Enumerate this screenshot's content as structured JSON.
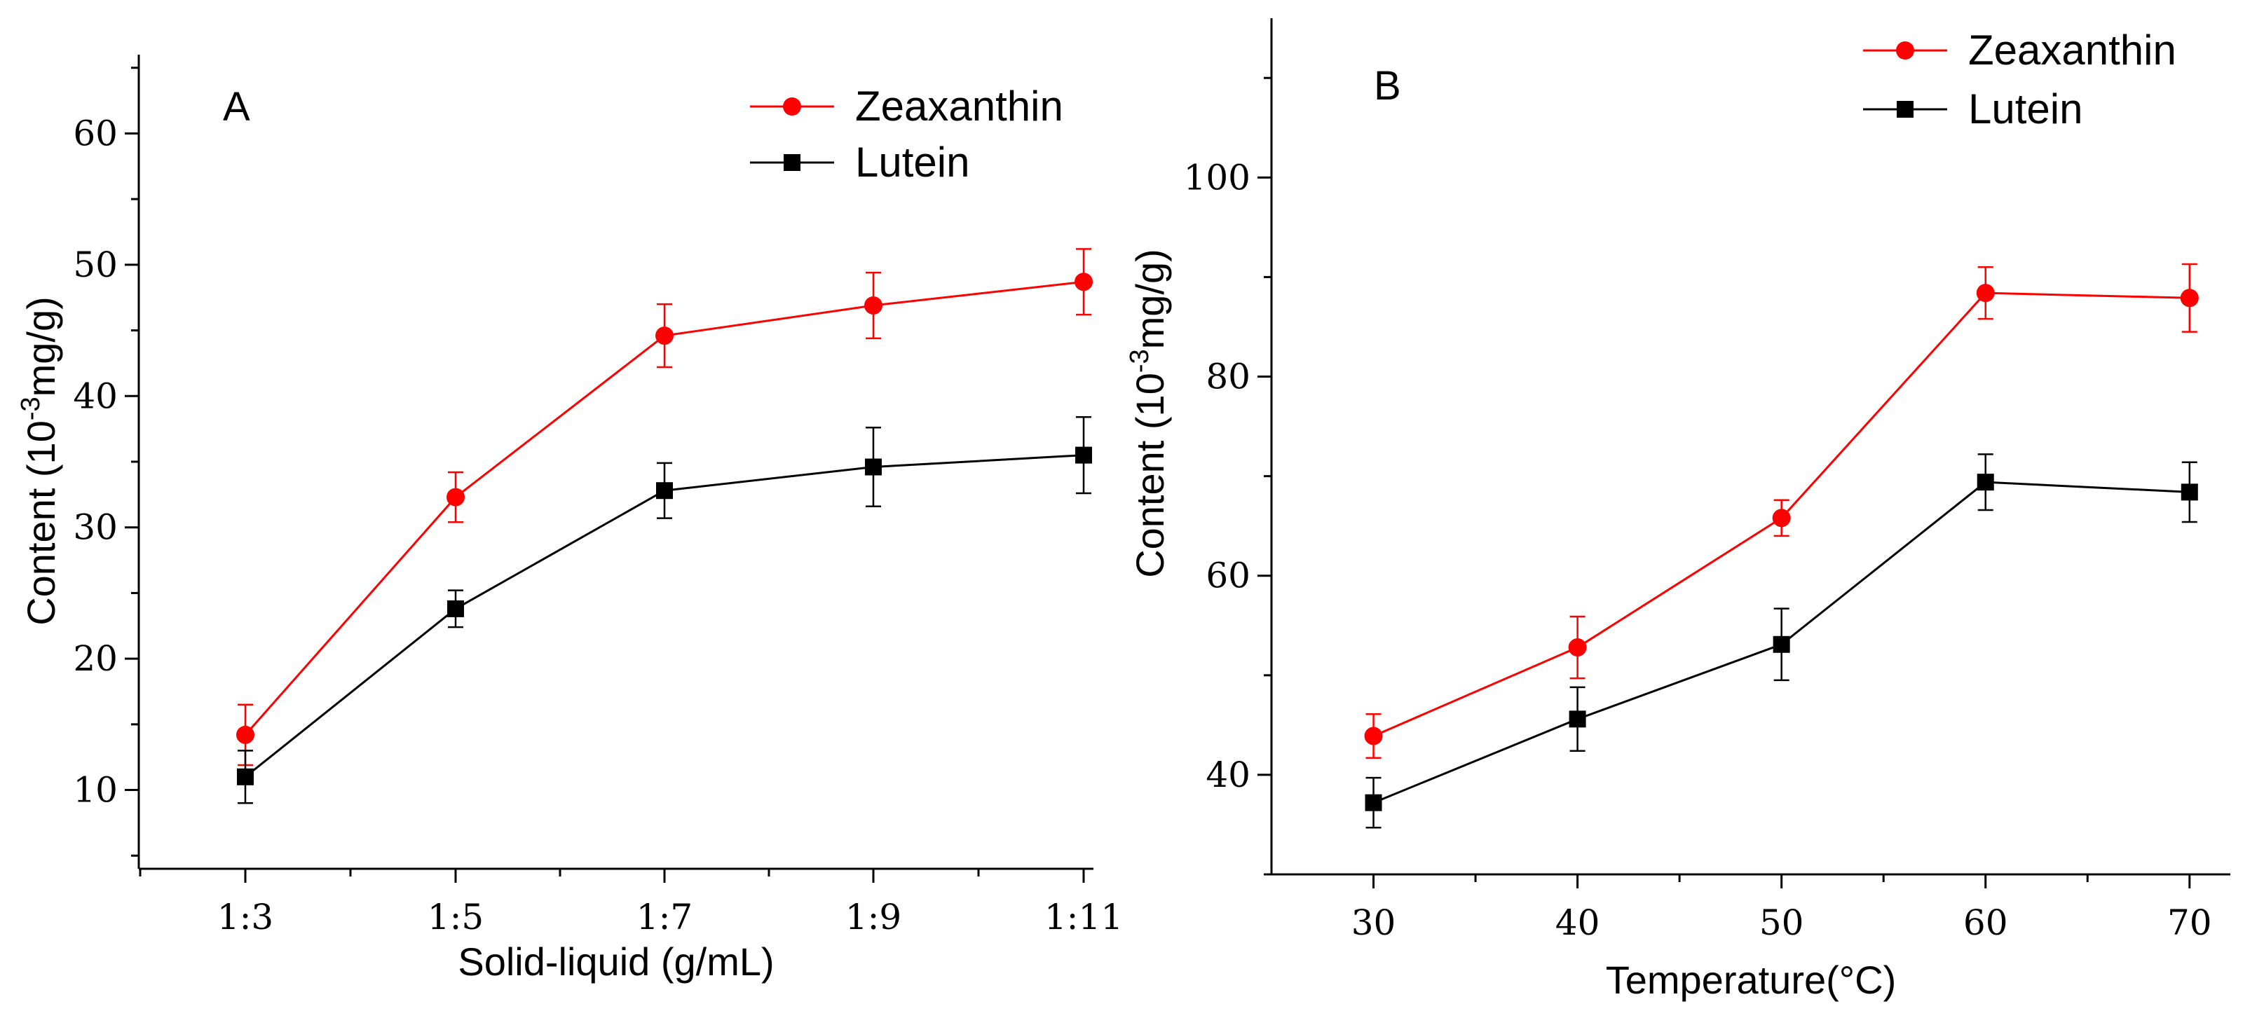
{
  "chart_data": [
    {
      "type": "line",
      "panel_label": "A",
      "categories": [
        "1:3",
        "1:5",
        "1:7",
        "1:9",
        "1:11"
      ],
      "xlabel": "Solid-liquid (g/mL)",
      "ylabel_prefix": "Content (10",
      "ylabel_sup": "-3",
      "ylabel_suffix": "mg/g)",
      "ylim": [
        4,
        66
      ],
      "yticks": [
        10,
        20,
        30,
        40,
        50,
        60
      ],
      "grid": false,
      "legend_position": "top-right",
      "series": [
        {
          "name": "Zeaxanthin",
          "color": "#ff0000",
          "marker": "circle",
          "values": [
            14.2,
            32.3,
            44.6,
            46.9,
            48.7
          ],
          "errors": [
            2.3,
            1.9,
            2.4,
            2.5,
            2.5
          ]
        },
        {
          "name": "Lutein",
          "color": "#000000",
          "marker": "square",
          "values": [
            11.0,
            23.8,
            32.8,
            34.6,
            35.5
          ],
          "errors": [
            2.0,
            1.4,
            2.1,
            3.0,
            2.9
          ]
        }
      ]
    },
    {
      "type": "line",
      "panel_label": "B",
      "x": [
        30,
        40,
        50,
        60,
        70
      ],
      "xticks": [
        30,
        40,
        50,
        60,
        70
      ],
      "xlim": [
        25,
        72
      ],
      "xlabel": "Temperature(°C)",
      "ylabel_prefix": "Content (10",
      "ylabel_sup": "-3",
      "ylabel_suffix": "mg/g)",
      "ylim": [
        30,
        116
      ],
      "yticks": [
        40,
        60,
        80,
        100
      ],
      "grid": false,
      "legend_position": "top-right",
      "series": [
        {
          "name": "Zeaxanthin",
          "color": "#ff0000",
          "marker": "circle",
          "values": [
            43.9,
            52.8,
            65.8,
            88.4,
            87.9
          ],
          "errors": [
            2.2,
            3.1,
            1.8,
            2.6,
            3.4
          ]
        },
        {
          "name": "Lutein",
          "color": "#000000",
          "marker": "square",
          "values": [
            37.2,
            45.6,
            53.1,
            69.4,
            68.4
          ],
          "errors": [
            2.5,
            3.2,
            3.6,
            2.8,
            3.0
          ]
        }
      ]
    }
  ]
}
